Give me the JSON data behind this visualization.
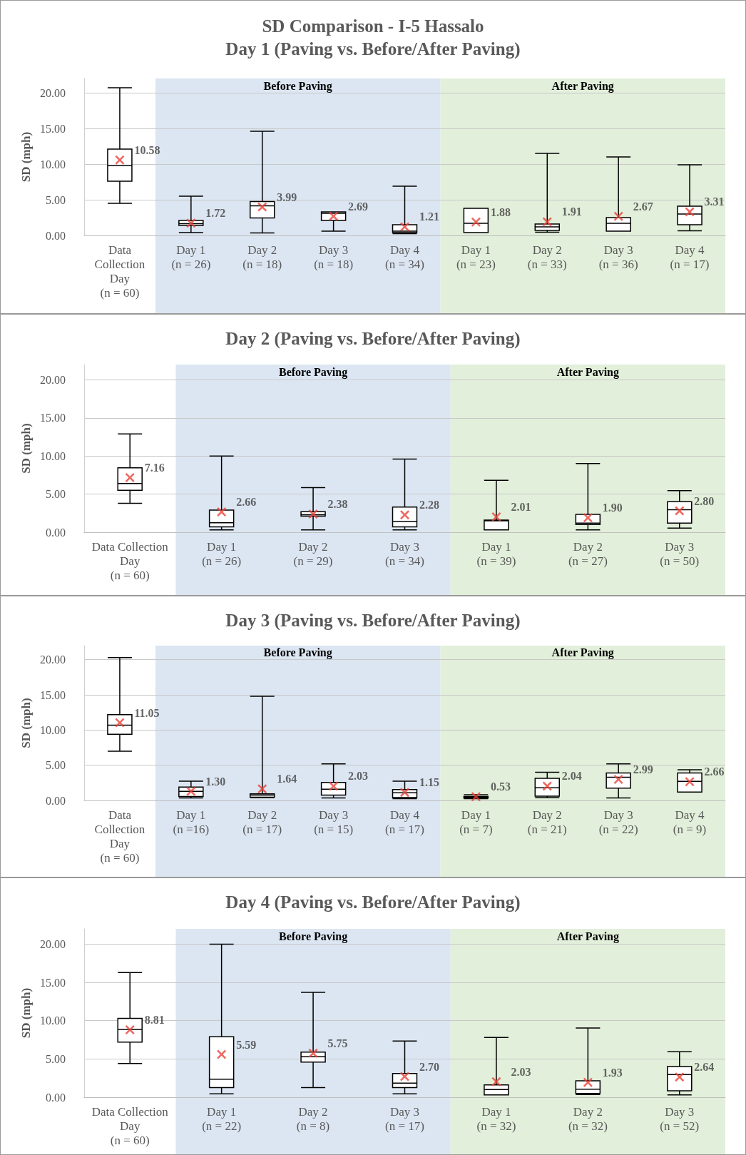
{
  "chart_data": [
    {
      "type": "box",
      "title": "SD Comparison - I-5 Hassalo",
      "subtitle": "Day 1 (Paving vs. Before/After Paving)",
      "ylabel": "SD (mph)",
      "categories": [
        "Data\nCollection\nDay\n(n = 60)",
        "Day 1\n(n = 26)",
        "Day 2\n(n = 18)",
        "Day 3\n(n = 18)",
        "Day 4\n(n = 34)",
        "Day 1\n(n = 23)",
        "Day 2\n(n = 33)",
        "Day 3\n(n = 36)",
        "Day 4\n(n = 17)"
      ],
      "series": [
        {
          "color": "#000000",
          "value_labels": [
            "10.58",
            "1.72",
            "3.99",
            "2.69",
            "1.21",
            "1.88",
            "1.91",
            "2.67",
            "3.31"
          ],
          "boxes": [
            {
              "low": 4.5,
              "q1": 7.6,
              "median": 9.8,
              "q3": 12.1,
              "high": 20.7,
              "mean": 10.58
            },
            {
              "low": 0.4,
              "q1": 1.4,
              "median": 1.65,
              "q3": 2.1,
              "high": 5.5,
              "mean": 1.72
            },
            {
              "low": 0.35,
              "q1": 2.45,
              "median": 4.15,
              "q3": 4.75,
              "high": 14.6,
              "mean": 3.99
            },
            {
              "low": 0.6,
              "q1": 2.1,
              "median": 3.1,
              "q3": 3.3,
              "high": 3.3,
              "mean": 2.69
            },
            {
              "low": 0.25,
              "q1": 0.4,
              "median": 0.6,
              "q3": 1.5,
              "high": 6.9,
              "mean": 1.21
            },
            {
              "low": 0.4,
              "q1": 0.4,
              "median": 1.7,
              "q3": 3.8,
              "high": 3.8,
              "mean": 1.88
            },
            {
              "low": 0.45,
              "q1": 0.7,
              "median": 1.2,
              "q3": 1.6,
              "high": 11.5,
              "mean": 1.91
            },
            {
              "low": 0.6,
              "q1": 0.6,
              "median": 1.7,
              "q3": 2.5,
              "high": 11,
              "mean": 2.67
            },
            {
              "low": 0.65,
              "q1": 1.5,
              "median": 3,
              "q3": 4.1,
              "high": 9.9,
              "mean": 3.31
            }
          ]
        }
      ],
      "bands": [
        {
          "axis": "x",
          "from": "Day 1\n(n = 26)",
          "to": "Day 4\n(n = 34)",
          "label": "Before Paving",
          "color": "#dce6f2"
        },
        {
          "axis": "x",
          "from": "Day 1\n(n = 23)",
          "to": "Day 4\n(n = 17)",
          "label": "After Paving",
          "color": "#e2efda"
        }
      ],
      "ylim": [
        0,
        22
      ],
      "yticks": [
        {
          "value": 0,
          "label": "0.00"
        },
        {
          "value": 5,
          "label": "5.00"
        },
        {
          "value": 10,
          "label": "10.00"
        },
        {
          "value": 15,
          "label": "15.00"
        },
        {
          "value": 20,
          "label": "20.00"
        }
      ],
      "grid": "y",
      "marker": "cross"
    },
    {
      "type": "box",
      "title": "Day 2 (Paving vs. Before/After Paving)",
      "ylabel": "SD (mph)",
      "categories": [
        "Data Collection\nDay\n(n = 60)",
        "Day 1\n(n = 26)",
        "Day 2\n(n = 29)",
        "Day 3\n(n = 34)",
        "Day 1\n(n = 39)",
        "Day 2\n(n = 27)",
        "Day 3\n(n = 50)"
      ],
      "series": [
        {
          "color": "#000000",
          "value_labels": [
            "7.16",
            "2.66",
            "2.38",
            "2.28",
            "2.01",
            "1.90",
            "2.80"
          ],
          "boxes": [
            {
              "low": 3.8,
              "q1": 5.5,
              "median": 6.4,
              "q3": 8.45,
              "high": 12.9,
              "mean": 7.16
            },
            {
              "low": 0.3,
              "q1": 0.7,
              "median": 1.25,
              "q3": 2.9,
              "high": 10,
              "mean": 2.66
            },
            {
              "low": 0.3,
              "q1": 2.1,
              "median": 2.3,
              "q3": 2.7,
              "high": 5.85,
              "mean": 2.38
            },
            {
              "low": 0.3,
              "q1": 0.7,
              "median": 1.4,
              "q3": 3.3,
              "high": 9.6,
              "mean": 2.28
            },
            {
              "low": 0.3,
              "q1": 0.3,
              "median": 1.5,
              "q3": 1.6,
              "high": 6.8,
              "mean": 2.01
            },
            {
              "low": 0.3,
              "q1": 1,
              "median": 1.2,
              "q3": 2.35,
              "high": 9,
              "mean": 1.9
            },
            {
              "low": 0.55,
              "q1": 1.2,
              "median": 2.95,
              "q3": 4,
              "high": 5.45,
              "mean": 2.8
            }
          ]
        }
      ],
      "bands": [
        {
          "axis": "x",
          "from": "Day 1\n(n = 26)",
          "to": "Day 3\n(n = 34)",
          "label": "Before Paving",
          "color": "#dce6f2"
        },
        {
          "axis": "x",
          "from": "Day 1\n(n = 39)",
          "to": "Day 3\n(n = 50)",
          "label": "After Paving",
          "color": "#e2efda"
        }
      ],
      "ylim": [
        0,
        22
      ],
      "yticks": [
        {
          "value": 0,
          "label": "0.00"
        },
        {
          "value": 5,
          "label": "5.00"
        },
        {
          "value": 10,
          "label": "10.00"
        },
        {
          "value": 15,
          "label": "15.00"
        },
        {
          "value": 20,
          "label": "20.00"
        }
      ],
      "grid": "y",
      "marker": "cross"
    },
    {
      "type": "box",
      "title": "Day 3 (Paving vs. Before/After Paving)",
      "ylabel": "SD (mph)",
      "categories": [
        "Data\nCollection\nDay\n(n = 60)",
        "Day 1\n(n =16)",
        "Day 2\n(n = 17)",
        "Day 3\n(n = 15)",
        "Day 4\n(n = 17)",
        "Day 1\n(n = 7)",
        "Day 2\n(n = 21)",
        "Day 3\n(n = 22)",
        "Day 4\n(n = 9)"
      ],
      "series": [
        {
          "color": "#000000",
          "value_labels": [
            "11.05",
            "1.30",
            "1.64",
            "2.03",
            "1.15",
            "0.53",
            "2.04",
            "2.99",
            "2.66"
          ],
          "boxes": [
            {
              "low": 7,
              "q1": 9.4,
              "median": 10.7,
              "q3": 12.2,
              "high": 20.3,
              "mean": 11.05
            },
            {
              "low": 0.35,
              "q1": 0.55,
              "median": 1.3,
              "q3": 1.9,
              "high": 2.75,
              "mean": 1.3
            },
            {
              "low": 0.4,
              "q1": 0.45,
              "median": 0.75,
              "q3": 0.95,
              "high": 14.8,
              "mean": 1.64
            },
            {
              "low": 0.35,
              "q1": 0.75,
              "median": 1.6,
              "q3": 2.55,
              "high": 5.2,
              "mean": 2.03
            },
            {
              "low": 0.25,
              "q1": 0.4,
              "median": 1.1,
              "q3": 1.55,
              "high": 2.75,
              "mean": 1.15
            },
            {
              "low": 0.25,
              "q1": 0.35,
              "median": 0.45,
              "q3": 0.55,
              "high": 0.8,
              "mean": 0.53
            },
            {
              "low": 0.4,
              "q1": 0.6,
              "median": 1.8,
              "q3": 3.15,
              "high": 4,
              "mean": 2.04
            },
            {
              "low": 0.35,
              "q1": 1.75,
              "median": 3.3,
              "q3": 3.9,
              "high": 5.2,
              "mean": 2.99
            },
            {
              "low": 1.2,
              "q1": 1.2,
              "median": 2.7,
              "q3": 3.9,
              "high": 4.35,
              "mean": 2.66
            }
          ]
        }
      ],
      "bands": [
        {
          "axis": "x",
          "from": "Day 1\n(n =16)",
          "to": "Day 4\n(n = 17)",
          "label": "Before Paving",
          "color": "#dce6f2"
        },
        {
          "axis": "x",
          "from": "Day 1\n(n = 7)",
          "to": "Day 4\n(n = 9)",
          "label": "After Paving",
          "color": "#e2efda"
        }
      ],
      "ylim": [
        0,
        22
      ],
      "yticks": [
        {
          "value": 0,
          "label": "0.00"
        },
        {
          "value": 5,
          "label": "5.00"
        },
        {
          "value": 10,
          "label": "10.00"
        },
        {
          "value": 15,
          "label": "15.00"
        },
        {
          "value": 20,
          "label": "20.00"
        }
      ],
      "grid": "y",
      "marker": "cross"
    },
    {
      "type": "box",
      "title": "Day 4 (Paving vs. Before/After Paving)",
      "ylabel": "SD (mph)",
      "categories": [
        "Data Collection\nDay\n(n = 60)",
        "Day 1\n(n = 22)",
        "Day 2\n(n = 8)",
        "Day 3\n(n = 17)",
        "Day 1\n(n = 32)",
        "Day 2\n(n = 32)",
        "Day 3\n(n = 52)"
      ],
      "series": [
        {
          "color": "#000000",
          "value_labels": [
            "8.81",
            "5.59",
            "5.75",
            "2.70",
            "2.03",
            "1.93",
            "2.64"
          ],
          "boxes": [
            {
              "low": 4.4,
              "q1": 7.2,
              "median": 8.85,
              "q3": 10.3,
              "high": 16.3,
              "mean": 8.81
            },
            {
              "low": 0.45,
              "q1": 1.25,
              "median": 2.35,
              "q3": 7.9,
              "high": 20,
              "mean": 5.59
            },
            {
              "low": 1.25,
              "q1": 4.6,
              "median": 5.3,
              "q3": 5.9,
              "high": 13.7,
              "mean": 5.75
            },
            {
              "low": 0.45,
              "q1": 1.25,
              "median": 1.85,
              "q3": 3.1,
              "high": 7.35,
              "mean": 2.7
            },
            {
              "low": 0.3,
              "q1": 0.3,
              "median": 1,
              "q3": 1.6,
              "high": 7.8,
              "mean": 2.03
            },
            {
              "low": 0.35,
              "q1": 0.5,
              "median": 1.05,
              "q3": 2.15,
              "high": 9.05,
              "mean": 1.93
            },
            {
              "low": 0.3,
              "q1": 0.85,
              "median": 2.95,
              "q3": 4,
              "high": 5.95,
              "mean": 2.64
            }
          ]
        }
      ],
      "bands": [
        {
          "axis": "x",
          "from": "Day 1\n(n = 22)",
          "to": "Day 3\n(n = 17)",
          "label": "Before Paving",
          "color": "#dce6f2"
        },
        {
          "axis": "x",
          "from": "Day 1\n(n = 32)",
          "to": "Day 3\n(n = 52)",
          "label": "After Paving",
          "color": "#e2efda"
        }
      ],
      "ylim": [
        0,
        22
      ],
      "yticks": [
        {
          "value": 0,
          "label": "0.00"
        },
        {
          "value": 5,
          "label": "5.00"
        },
        {
          "value": 10,
          "label": "10.00"
        },
        {
          "value": 15,
          "label": "15.00"
        },
        {
          "value": 20,
          "label": "20.00"
        }
      ],
      "grid": "y",
      "marker": "cross"
    }
  ]
}
